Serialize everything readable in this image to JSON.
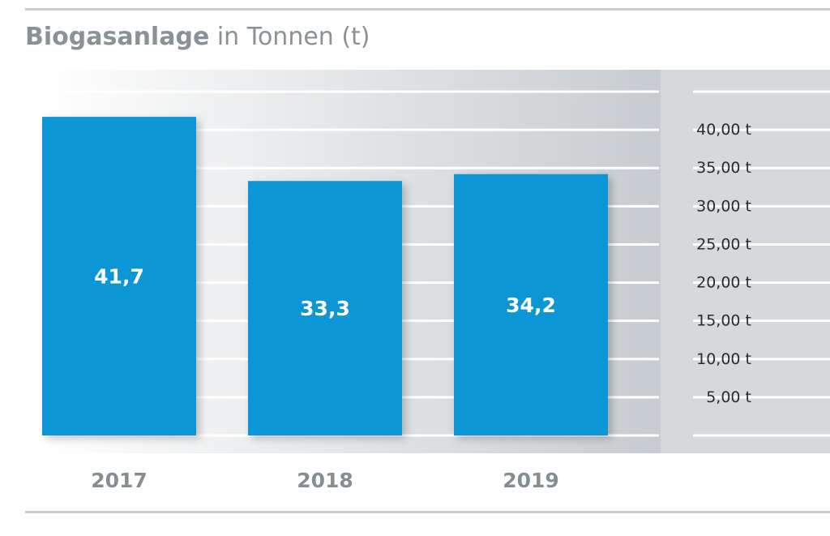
{
  "title": {
    "bold": "Biogasanlage",
    "rest": " in Tonnen (t)"
  },
  "colors": {
    "bar": "#0a96d6",
    "bar_label": "#ffffff",
    "category_label": "#868e92",
    "tick_label": "#2b2b2b",
    "gridline": "#ffffff",
    "rule": "#c9cdd1",
    "background_gradient": [
      "#ffffff",
      "#c7ccd0"
    ],
    "axis_panel": "#d5d9dc"
  },
  "chart_data": {
    "type": "bar",
    "categories": [
      "2017",
      "2018",
      "2019"
    ],
    "values": [
      41.7,
      33.3,
      34.2
    ],
    "value_labels": [
      "41,7",
      "33,3",
      "34,2"
    ],
    "title": "Biogasanlage in Tonnen (t)",
    "xlabel": "",
    "ylabel": "",
    "ylim": [
      0,
      45
    ],
    "yticks": [
      5,
      10,
      15,
      20,
      25,
      30,
      35,
      40
    ],
    "ytick_labels": [
      "5,00 t",
      "10,00 t",
      "15,00 t",
      "20,00 t",
      "25,00 t",
      "30,00 t",
      "35,00 t",
      "40,00 t"
    ],
    "grid": true,
    "axis_position": "right",
    "legend": "none"
  }
}
